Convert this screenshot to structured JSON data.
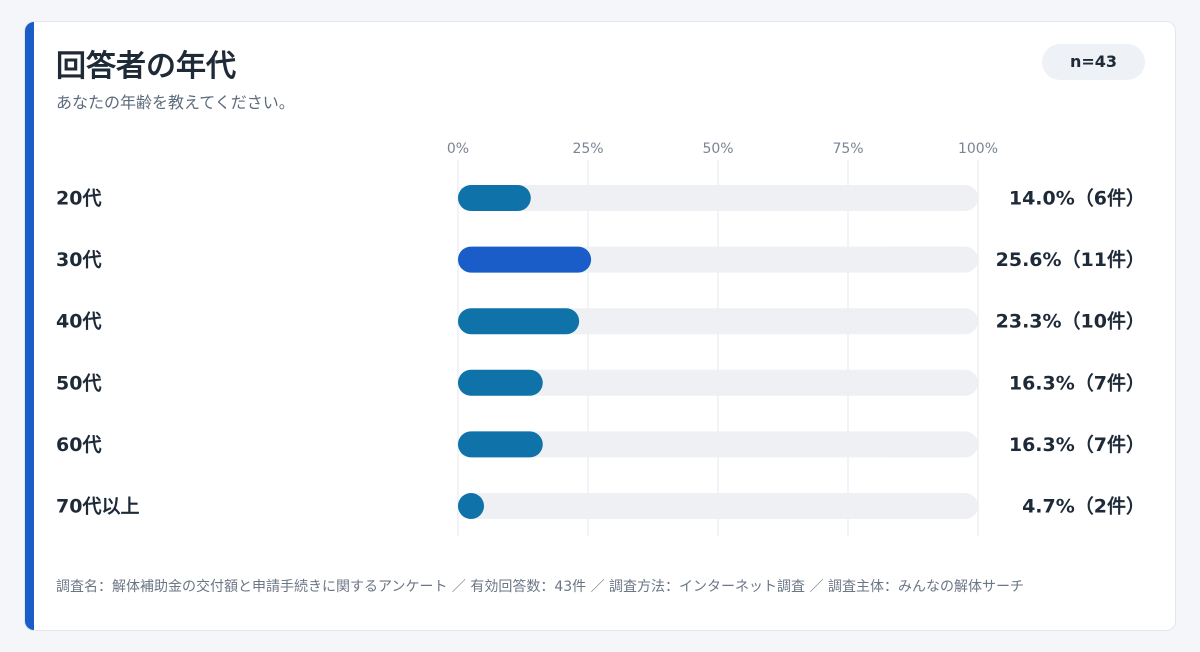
{
  "header": {
    "title": "回答者の年代",
    "subtitle": "あなたの年齢を教えてください。",
    "n_label": "n=43"
  },
  "chart_data": {
    "type": "bar",
    "orientation": "horizontal",
    "categories": [
      "20代",
      "30代",
      "40代",
      "50代",
      "60代",
      "70代以上"
    ],
    "values": [
      14.0,
      25.6,
      23.3,
      16.3,
      16.3,
      4.7
    ],
    "counts": [
      6,
      11,
      10,
      7,
      7,
      2
    ],
    "value_labels": [
      "14.0%（6件）",
      "25.6%（11件）",
      "23.3%（10件）",
      "16.3%（7件）",
      "16.3%（7件）",
      "4.7%（2件）"
    ],
    "highlight_index": 1,
    "xlim": [
      0,
      100
    ],
    "ticks": [
      0,
      25,
      50,
      75,
      100
    ],
    "tick_labels": [
      "0%",
      "25%",
      "50%",
      "75%",
      "100%"
    ],
    "grid": true,
    "axis_position": "top",
    "colors": {
      "bar": "#0f72a8",
      "highlight": "#1a5cc8",
      "track": "#eef0f4",
      "grid": "#e4e7ec"
    }
  },
  "footer": {
    "note": "調査名：解体補助金の交付額と申請手続きに関するアンケート ／ 有効回答数：43件 ／ 調査方法：インターネット調査 ／ 調査主体：みんなの解体サーチ"
  },
  "theme": {
    "accent": "#1a5cc8",
    "text": "#1e2a38",
    "muted": "#5e6b7b"
  }
}
